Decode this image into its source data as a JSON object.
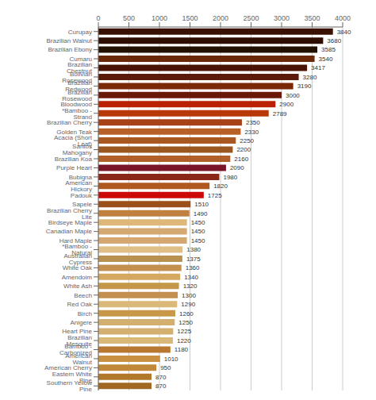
{
  "chart_data": {
    "type": "bar",
    "orientation": "horizontal",
    "categories": [
      "Curupay",
      "Brazilian Walnut",
      "Brazilian Ebony",
      "Cumaru",
      "Brazilian Chestnut",
      "Bolivian Rosewood",
      "Brazilian Redwood",
      "Brazilian Rosewood",
      "Bloodwood",
      "*Bamboo - Strand",
      "Brazilian Cherry",
      "Golden Teak",
      "Acacia (Short Leaf)",
      "Santos Mahogany",
      "Brazilian Koa",
      "Purple Heart",
      "Bubigna",
      "American Hickory",
      "Padouk",
      "Sapele",
      "Brazilian Cherry Lite",
      "Birdseye Maple",
      "Canadian Maple",
      "Hard Maple",
      "*Bamboo - Natural",
      "Australian Cypress",
      "White Oak",
      "Amendoim",
      "White Ash",
      "Beech",
      "Red Oak",
      "Birch",
      "Anigere",
      "Heart Pine",
      "Brazilian Mesquite",
      "Bamboo - Carbonized",
      "American Walnut",
      "American Cherry",
      "Eastern White Pine",
      "Southern Yellow Pine"
    ],
    "values": [
      3840,
      3680,
      3585,
      3540,
      3417,
      3280,
      3190,
      3000,
      2900,
      2789,
      2350,
      2330,
      2250,
      2200,
      2160,
      2090,
      1980,
      1820,
      1725,
      1510,
      1490,
      1450,
      1450,
      1450,
      1380,
      1375,
      1360,
      1340,
      1320,
      1300,
      1290,
      1260,
      1250,
      1225,
      1220,
      1180,
      1010,
      950,
      870,
      870
    ],
    "colors": [
      "#3a1000",
      "#2d0e00",
      "#221000",
      "#6b2808",
      "#4a1405",
      "#5c1a0a",
      "#7a2808",
      "#6a1808",
      "#bb2000",
      "#b83808",
      "#a84018",
      "#b86028",
      "#a85820",
      "#9a5820",
      "#b06028",
      "#7a1428",
      "#8a2818",
      "#b05820",
      "#cc0808",
      "#9a5018",
      "#c08040",
      "#ddb878",
      "#d4a870",
      "#d4a870",
      "#e0be88",
      "#b89050",
      "#c49050",
      "#d4a860",
      "#c49848",
      "#c49050",
      "#dab878",
      "#c89848",
      "#d4b070",
      "#d4b070",
      "#dab878",
      "#b87830",
      "#c89040",
      "#c08838",
      "#b07828",
      "#a06820"
    ],
    "xlim": [
      0,
      4000
    ],
    "xticks": [
      0,
      500,
      1000,
      1500,
      2000,
      2500,
      3000,
      3500,
      4000
    ],
    "grid": true,
    "data_labels": true
  }
}
